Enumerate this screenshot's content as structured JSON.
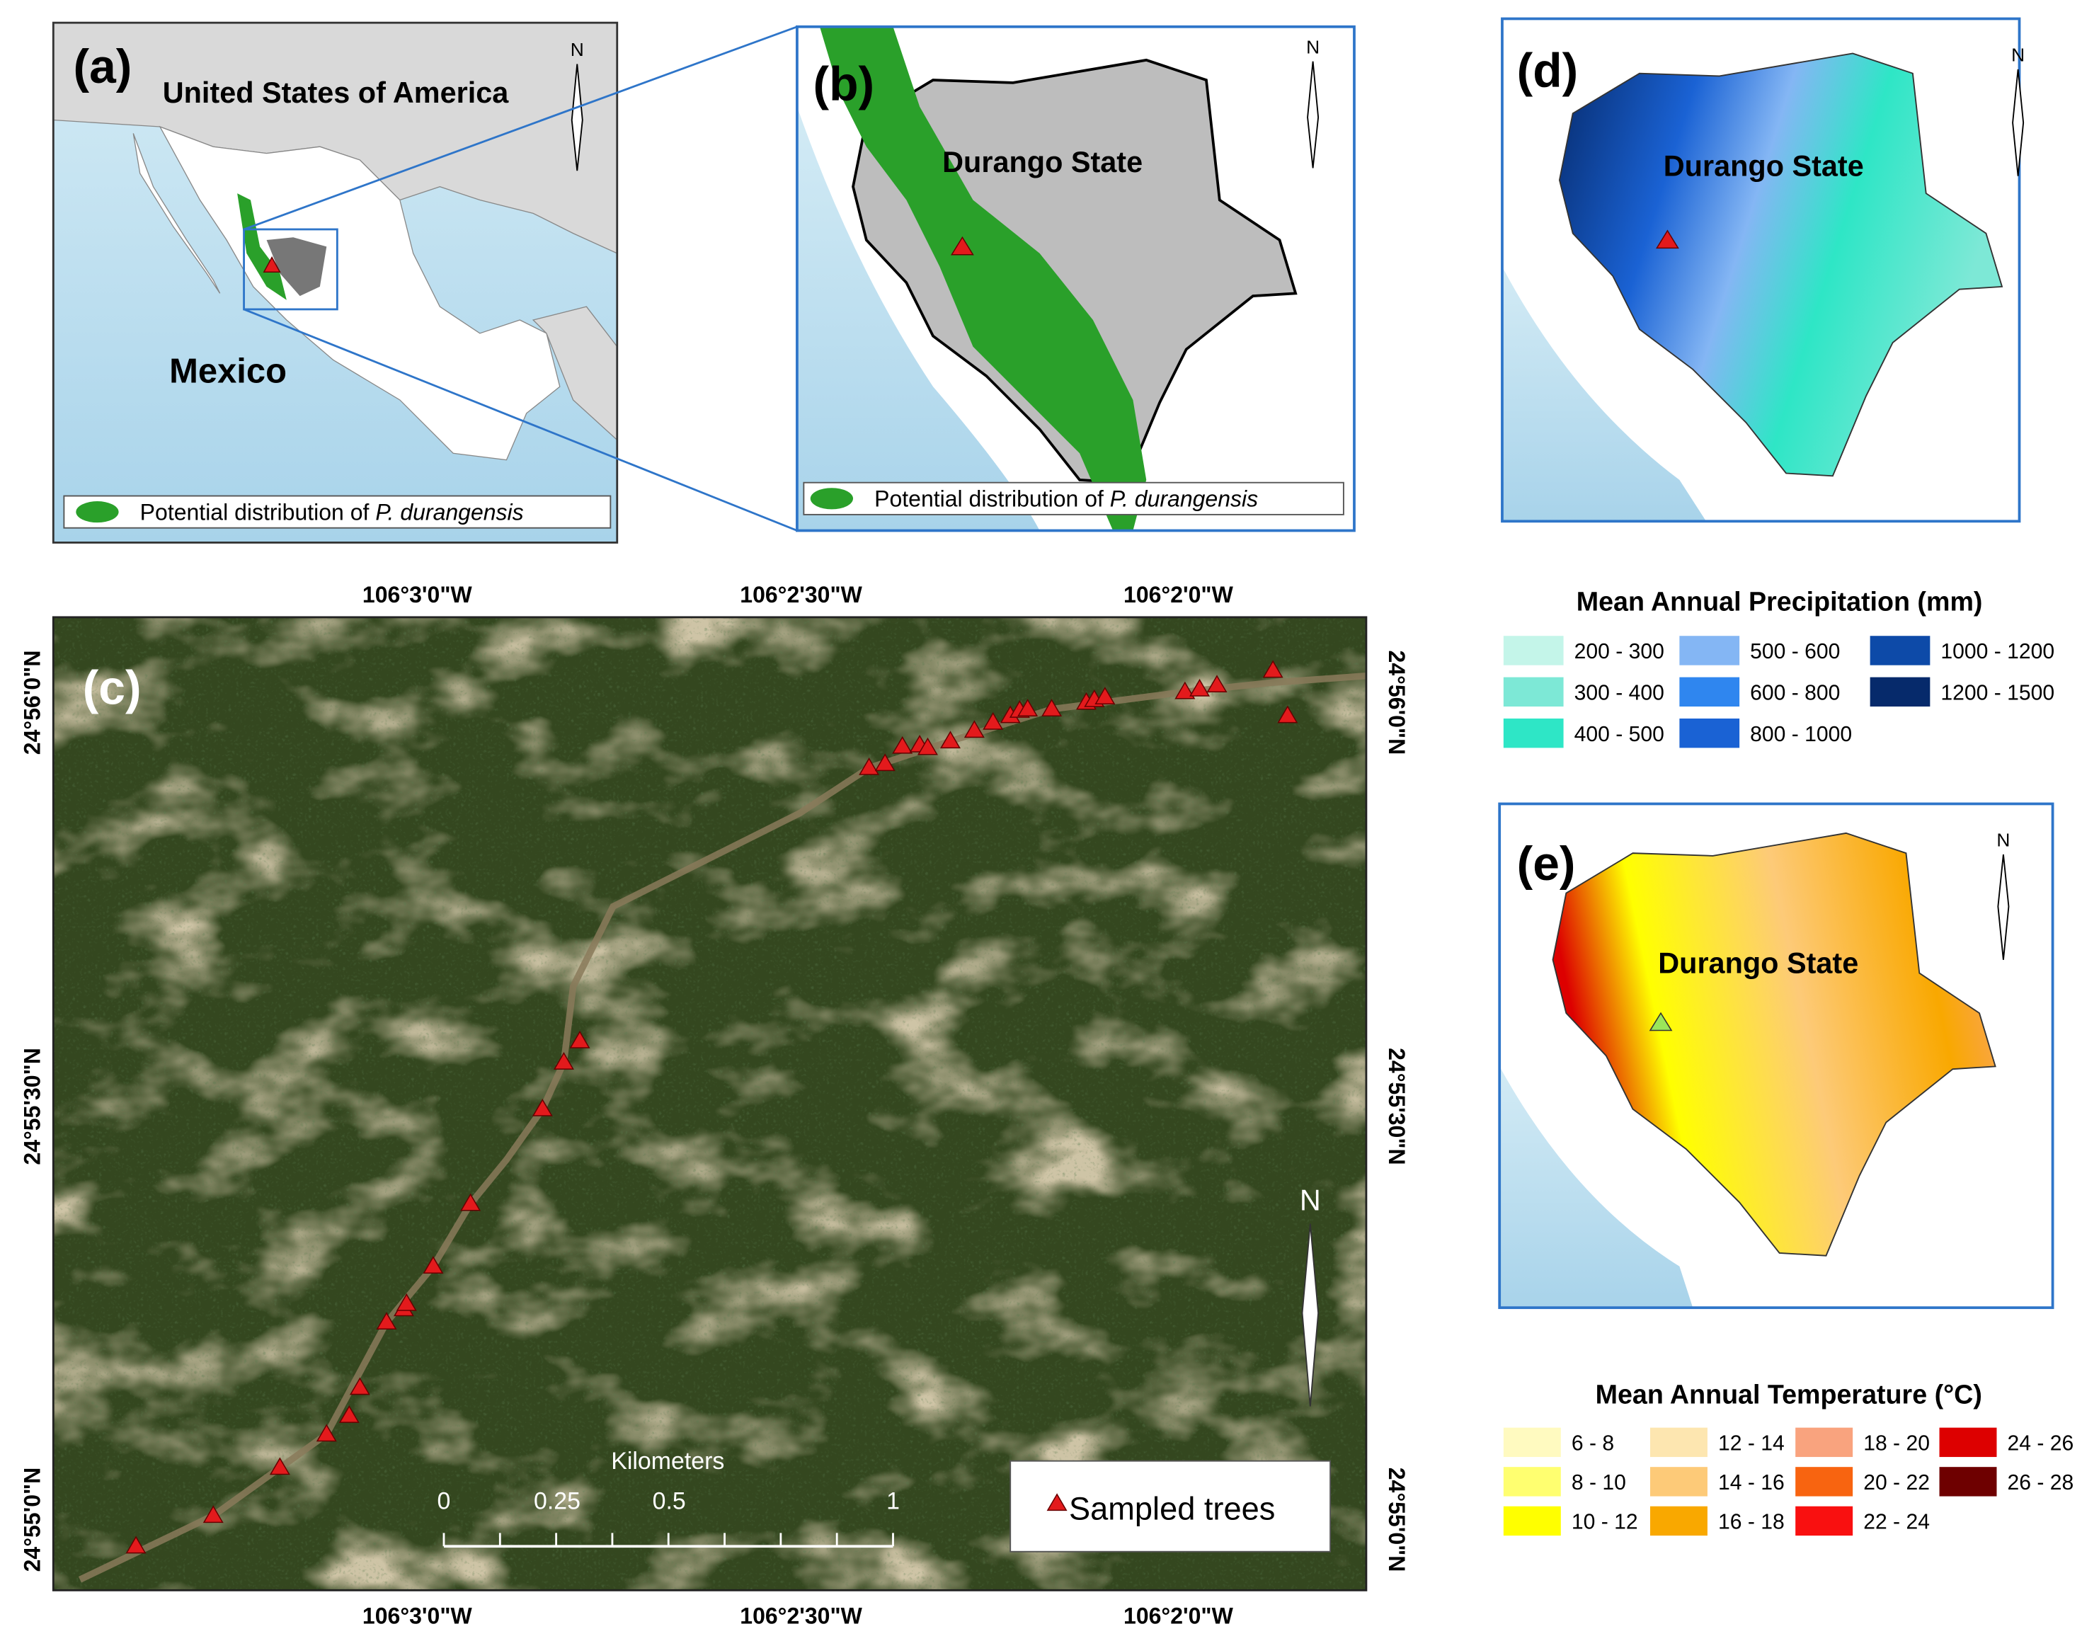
{
  "map_a": {
    "label": "(a)",
    "usa": "United States of America",
    "mexico": "Mexico",
    "north": "N",
    "legend": {
      "text": "Potential distribution of ",
      "species": "P. durangensis"
    }
  },
  "map_b": {
    "label": "(b)",
    "state": "Durango State",
    "north": "N",
    "legend": {
      "text": "Potential distribution of ",
      "species": "P. durangensis"
    }
  },
  "map_c": {
    "label": "(c)",
    "north": "N",
    "top_labels": [
      "106°3'0\"W",
      "106°2'30\"W",
      "106°2'0\"W"
    ],
    "bottom_labels": [
      "106°3'0\"W",
      "106°2'30\"W",
      "106°2'0\"W"
    ],
    "left_labels": [
      "24°56'0\"N",
      "24°55'30\"N",
      "24°55'0\"N"
    ],
    "right_labels": [
      "24°56'0\"N",
      "24°55'30\"N",
      "24°55'0\"N"
    ],
    "scale_title": "Kilometers",
    "scale_labels": [
      "0",
      "0.25",
      "0.5",
      "1"
    ],
    "legend": "Sampled trees"
  },
  "map_d": {
    "label": "(d)",
    "state": "Durango State",
    "north": "N"
  },
  "precip_legend": {
    "title": "Mean Annual Precipitation (mm)",
    "items": [
      {
        "label": "200 - 300",
        "color": "#c4f5e9"
      },
      {
        "label": "300 - 400",
        "color": "#7de8d6"
      },
      {
        "label": "400 - 500",
        "color": "#2ee6c6"
      },
      {
        "label": "500 - 600",
        "color": "#84b6f4"
      },
      {
        "label": "600 - 800",
        "color": "#2f86ef"
      },
      {
        "label": "800 - 1000",
        "color": "#1a62d4"
      },
      {
        "label": "1000 - 1200",
        "color": "#0d4aa8"
      },
      {
        "label": "1200 - 1500",
        "color": "#062a6b"
      }
    ]
  },
  "map_e": {
    "label": "(e)",
    "state": "Durango State",
    "north": "N"
  },
  "temp_legend": {
    "title": "Mean Annual Temperature (°C)",
    "items": [
      {
        "label": "6 - 8",
        "color": "#fffac0"
      },
      {
        "label": "8 - 10",
        "color": "#ffff70"
      },
      {
        "label": "10 - 12",
        "color": "#ffff00"
      },
      {
        "label": "12 - 14",
        "color": "#fde6b0"
      },
      {
        "label": "14 - 16",
        "color": "#fdca78"
      },
      {
        "label": "16 - 18",
        "color": "#f9a800"
      },
      {
        "label": "18 - 20",
        "color": "#f9a37e"
      },
      {
        "label": "20 - 22",
        "color": "#f86410"
      },
      {
        "label": "22 - 24",
        "color": "#f91010"
      },
      {
        "label": "24 - 26",
        "color": "#dd0000"
      },
      {
        "label": "26 - 28",
        "color": "#6e0000"
      }
    ]
  }
}
